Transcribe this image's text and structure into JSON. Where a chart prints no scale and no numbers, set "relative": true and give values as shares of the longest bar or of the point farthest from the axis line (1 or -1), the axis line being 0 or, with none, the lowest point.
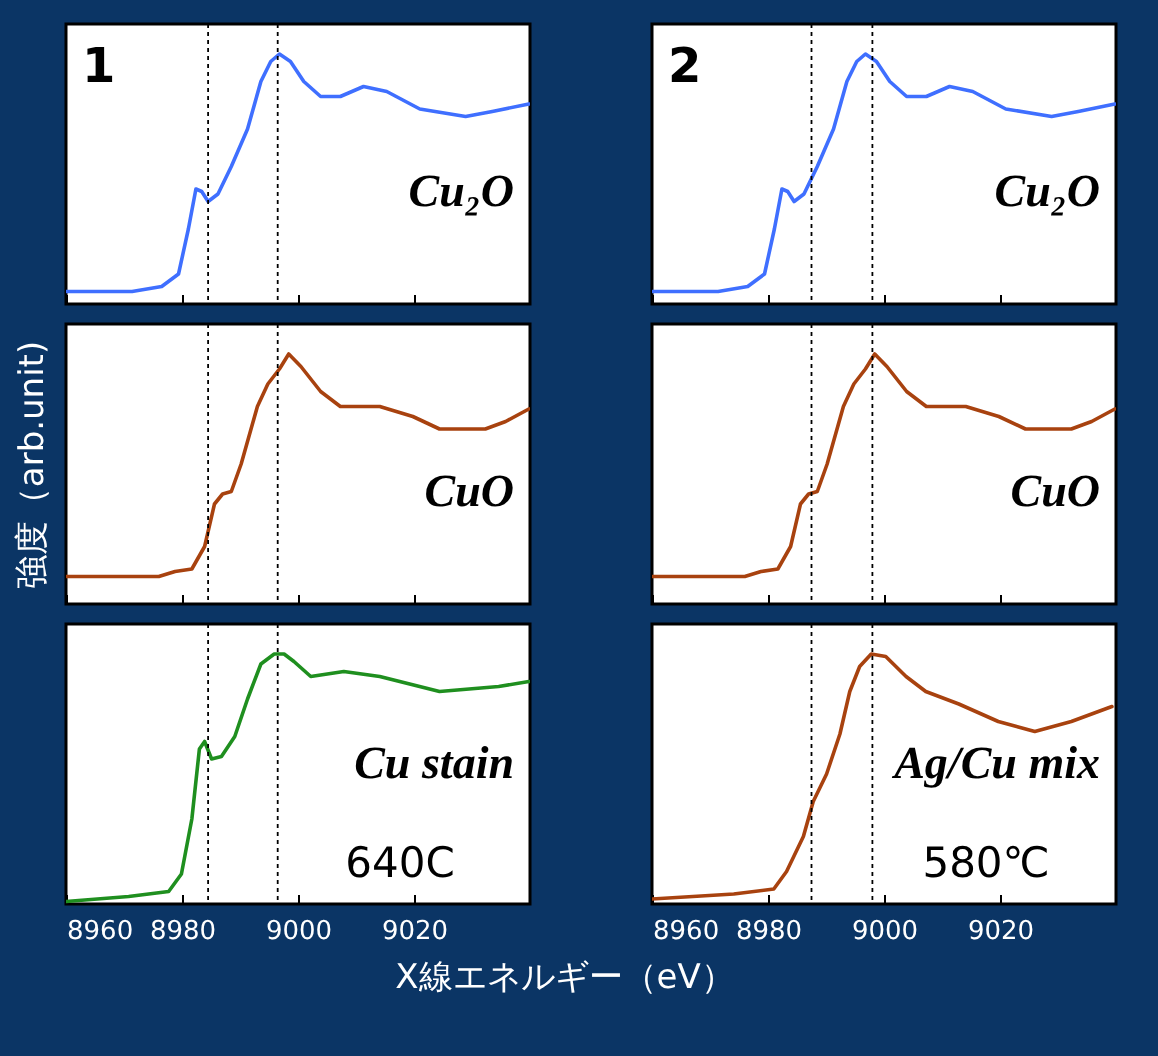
{
  "chart_data": [
    {
      "type": "line",
      "relative": true,
      "xlim": [
        8960,
        9040
      ],
      "xticks": [
        8960,
        8980,
        9000,
        9020
      ],
      "tick_labels": false,
      "annotations": [
        "1",
        "Cu₂O"
      ],
      "ref_lines": [
        {
          "axis": "x",
          "value": 8984.5,
          "line_style": "dotted"
        },
        {
          "axis": "x",
          "value": 8996.5,
          "line_style": "dotted"
        }
      ],
      "x": [
        8960,
        8971.4,
        8976.5,
        8979.4,
        8981.1,
        8982.4,
        8983.4,
        8984.5,
        8986.2,
        8988.5,
        8991.3,
        8993.6,
        8995.3,
        8996.8,
        8998.7,
        9001,
        9003.9,
        9007.3,
        9011.3,
        9015.3,
        9021,
        9028.9,
        9033.5,
        9039.8
      ],
      "series": [
        {
          "color": "#3f6fff",
          "values": [
            0.05,
            0.05,
            0.07,
            0.12,
            0.3,
            0.46,
            0.45,
            0.41,
            0.44,
            0.55,
            0.7,
            0.89,
            0.97,
            1,
            0.97,
            0.89,
            0.83,
            0.83,
            0.87,
            0.85,
            0.78,
            0.75,
            0.77,
            0.8
          ]
        }
      ]
    },
    {
      "type": "line",
      "relative": true,
      "xlim": [
        8960,
        9040
      ],
      "xticks": [
        8960,
        8980,
        9000,
        9020
      ],
      "tick_labels": false,
      "ylabel": "強度（arb.unit)",
      "annotations": [
        "CuO"
      ],
      "ref_lines": [
        {
          "axis": "x",
          "value": 8984.5,
          "line_style": "dotted"
        },
        {
          "axis": "x",
          "value": 8996.5,
          "line_style": "dotted"
        }
      ],
      "x": [
        8960,
        8976,
        8978.8,
        8981.7,
        8983.9,
        8985.6,
        8987,
        8988.5,
        8990.2,
        8993,
        8994.8,
        8996.8,
        8998.4,
        9000.5,
        9003.9,
        9007.3,
        9014.1,
        9019.8,
        9024.4,
        9032.3,
        9035.8,
        9039.8
      ],
      "series": [
        {
          "color": "#a8420f",
          "values": [
            0.11,
            0.11,
            0.13,
            0.14,
            0.23,
            0.4,
            0.44,
            0.45,
            0.56,
            0.79,
            0.88,
            0.94,
            1,
            0.95,
            0.85,
            0.79,
            0.79,
            0.75,
            0.7,
            0.7,
            0.73,
            0.78
          ]
        }
      ]
    },
    {
      "type": "line",
      "relative": true,
      "xlim": [
        8960,
        9040
      ],
      "xticks": [
        8960,
        8980,
        9000,
        9020
      ],
      "tick_labels": "x",
      "xlabel": "X線エネルギー（eV）",
      "annotations": [
        "Cu stain",
        "640C"
      ],
      "ref_lines": [
        {
          "axis": "x",
          "value": 8984.5,
          "line_style": "dotted"
        },
        {
          "axis": "x",
          "value": 8996.5,
          "line_style": "dotted"
        }
      ],
      "x": [
        8960,
        8970.8,
        8977.7,
        8979.9,
        8981.7,
        8983,
        8983.9,
        8985.1,
        8986.8,
        8989.1,
        8991.3,
        8993.6,
        8995.9,
        8997.6,
        8999.3,
        9002.2,
        9007.9,
        9014.1,
        9024.4,
        9034.6,
        9039.8
      ],
      "series": [
        {
          "color": "#1f8f1f",
          "values": [
            0.01,
            0.03,
            0.05,
            0.12,
            0.34,
            0.62,
            0.65,
            0.58,
            0.59,
            0.67,
            0.82,
            0.96,
            1,
            1,
            0.97,
            0.91,
            0.93,
            0.91,
            0.85,
            0.87,
            0.89
          ]
        }
      ]
    },
    {
      "type": "line",
      "relative": true,
      "xlim": [
        8960,
        9040
      ],
      "xticks": [
        8960,
        8980,
        9000,
        9020
      ],
      "tick_labels": false,
      "annotations": [
        "2",
        "Cu₂O"
      ],
      "ref_lines": [
        {
          "axis": "x",
          "value": 8987.5,
          "line_style": "dotted"
        },
        {
          "axis": "x",
          "value": 8998,
          "line_style": "dotted"
        }
      ],
      "x": [
        8960,
        8971.4,
        8976.5,
        8979.4,
        8981.1,
        8982.4,
        8983.4,
        8984.5,
        8986.2,
        8988.5,
        8991.3,
        8993.6,
        8995.3,
        8996.8,
        8998.7,
        9001,
        9003.9,
        9007.3,
        9011.3,
        9015.3,
        9021,
        9028.9,
        9033.5,
        9039.8
      ],
      "series": [
        {
          "color": "#3f6fff",
          "values": [
            0.05,
            0.05,
            0.07,
            0.12,
            0.3,
            0.46,
            0.45,
            0.41,
            0.44,
            0.55,
            0.7,
            0.89,
            0.97,
            1,
            0.97,
            0.89,
            0.83,
            0.83,
            0.87,
            0.85,
            0.78,
            0.75,
            0.77,
            0.8
          ]
        }
      ]
    },
    {
      "type": "line",
      "relative": true,
      "xlim": [
        8960,
        9040
      ],
      "xticks": [
        8960,
        8980,
        9000,
        9020
      ],
      "tick_labels": false,
      "annotations": [
        "CuO"
      ],
      "ref_lines": [
        {
          "axis": "x",
          "value": 8987.5,
          "line_style": "dotted"
        },
        {
          "axis": "x",
          "value": 8998,
          "line_style": "dotted"
        }
      ],
      "x": [
        8960,
        8976,
        8978.8,
        8981.7,
        8983.9,
        8985.6,
        8987,
        8988.5,
        8990.2,
        8993,
        8994.8,
        8996.8,
        8998.4,
        9000.5,
        9003.9,
        9007.3,
        9014.1,
        9019.8,
        9024.4,
        9032.3,
        9035.8,
        9039.8
      ],
      "series": [
        {
          "color": "#a8420f",
          "values": [
            0.11,
            0.11,
            0.13,
            0.14,
            0.23,
            0.4,
            0.44,
            0.45,
            0.56,
            0.79,
            0.88,
            0.94,
            1,
            0.95,
            0.85,
            0.79,
            0.79,
            0.75,
            0.7,
            0.7,
            0.73,
            0.78
          ]
        }
      ]
    },
    {
      "type": "line",
      "relative": true,
      "xlim": [
        8960,
        9040
      ],
      "xticks": [
        8960,
        8980,
        9000,
        9020
      ],
      "tick_labels": "x",
      "annotations": [
        "Ag/Cu mix",
        "580℃"
      ],
      "ref_lines": [
        {
          "axis": "x",
          "value": 8987.5,
          "line_style": "dotted"
        },
        {
          "axis": "x",
          "value": 8998,
          "line_style": "dotted"
        }
      ],
      "x": [
        8960,
        8974.1,
        8981,
        8983.2,
        8986.1,
        8987.8,
        8990.1,
        8992.4,
        8994.1,
        8995.8,
        8997.8,
        9000.3,
        9003.8,
        9007.2,
        9012.9,
        9019.7,
        9026,
        9032.3,
        9039.3
      ],
      "series": [
        {
          "color": "#a8420f",
          "values": [
            0.02,
            0.04,
            0.06,
            0.13,
            0.27,
            0.41,
            0.52,
            0.68,
            0.85,
            0.95,
            1,
            0.99,
            0.91,
            0.85,
            0.8,
            0.73,
            0.69,
            0.73,
            0.79
          ]
        }
      ]
    }
  ]
}
